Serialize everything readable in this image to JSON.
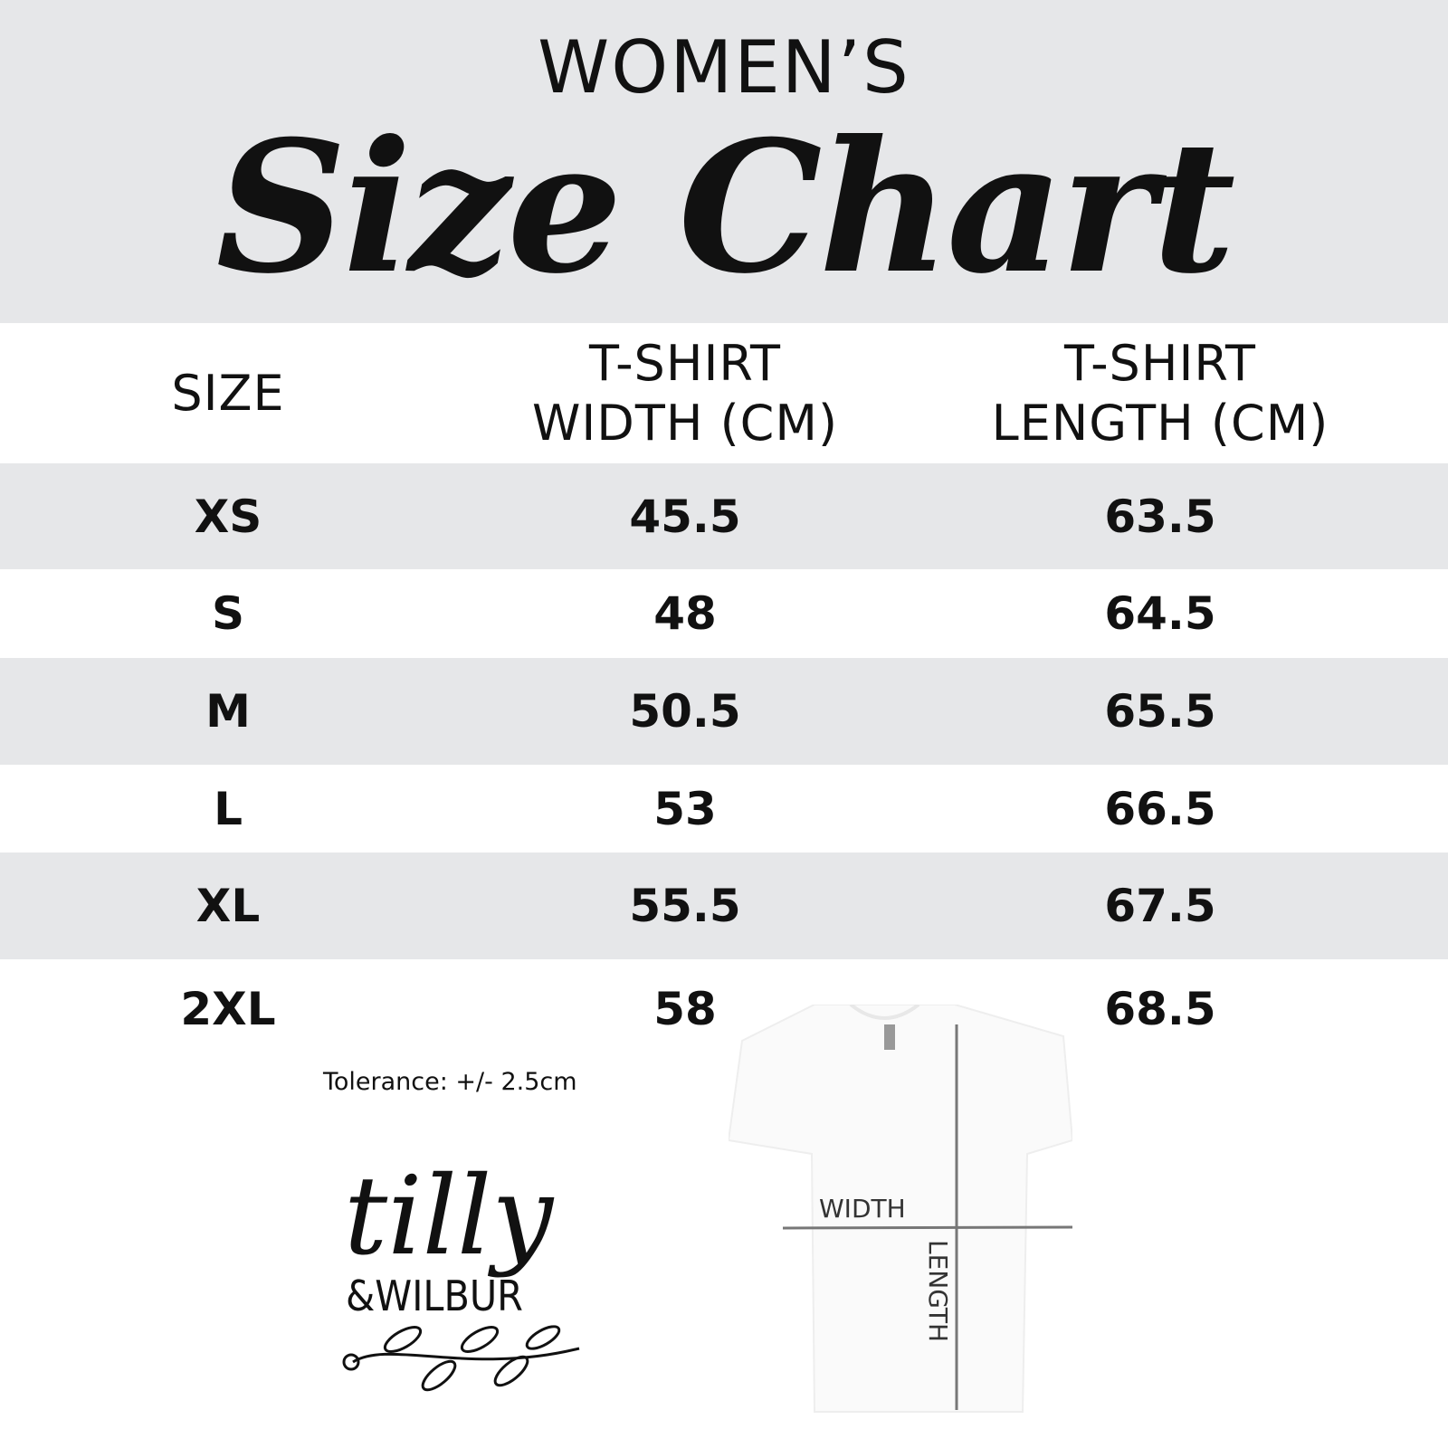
{
  "header": {
    "subtitle": "WOMEN’S",
    "title": "Size Chart"
  },
  "table": {
    "columns": [
      "SIZE",
      "T-SHIRT\nWIDTH (CM)",
      "T-SHIRT\nLENGTH (CM)"
    ],
    "rows": [
      {
        "size": "XS",
        "width": "45.5",
        "length": "63.5"
      },
      {
        "size": "S",
        "width": "48",
        "length": "64.5"
      },
      {
        "size": "M",
        "width": "50.5",
        "length": "65.5"
      },
      {
        "size": "L",
        "width": "53",
        "length": "66.5"
      },
      {
        "size": "XL",
        "width": "55.5",
        "length": "67.5"
      },
      {
        "size": "2XL",
        "width": "58",
        "length": "68.5"
      }
    ]
  },
  "tolerance": "Tolerance: +/- 2.5cm",
  "logo": {
    "line1": "tilly",
    "line2": "&WILBUR"
  },
  "diagram": {
    "width_label": "WIDTH",
    "length_label": "LENGTH"
  },
  "colors": {
    "band": "#e6e7e9",
    "text": "#111111",
    "measure_line": "#777777"
  }
}
